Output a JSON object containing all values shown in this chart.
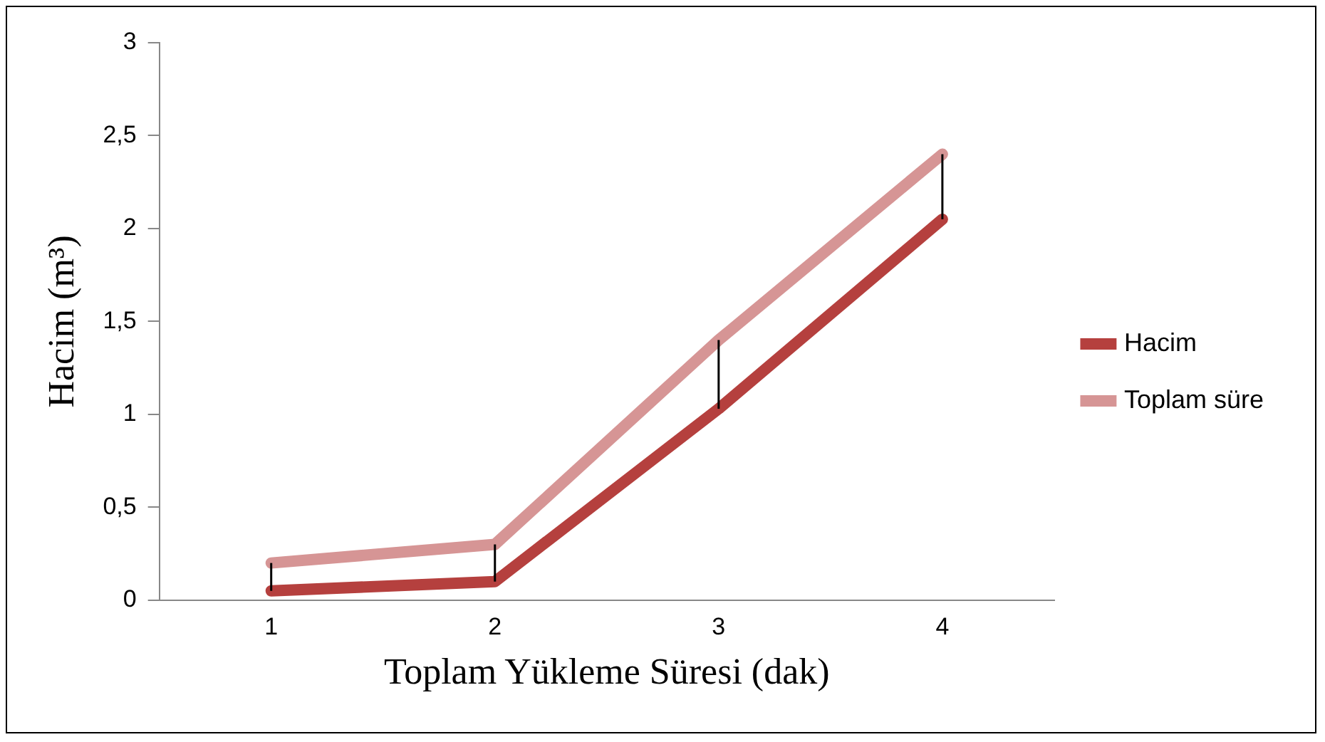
{
  "chart_data": {
    "type": "line",
    "xlabel": "Toplam Yükleme Süresi (dak)",
    "ylabel": "Hacim (m³)",
    "categories": [
      "1",
      "2",
      "3",
      "4"
    ],
    "series": [
      {
        "name": "Hacim",
        "color": "#b5403e",
        "values": [
          0.05,
          0.1,
          1.03,
          2.05
        ],
        "errors": [
          [
            0.05,
            0.2
          ],
          [
            0.1,
            0.3
          ],
          [
            1.03,
            1.4
          ],
          [
            2.05,
            2.4
          ]
        ]
      },
      {
        "name": "Toplam süre",
        "color": "#d69595",
        "values": [
          0.2,
          0.3,
          1.4,
          2.4
        ]
      }
    ],
    "ylim": [
      0,
      3
    ],
    "yticks": [
      {
        "value": 0,
        "label": "0"
      },
      {
        "value": 0.5,
        "label": "0,5"
      },
      {
        "value": 1,
        "label": "1"
      },
      {
        "value": 1.5,
        "label": "1,5"
      },
      {
        "value": 2,
        "label": "2"
      },
      {
        "value": 2.5,
        "label": "2,5"
      },
      {
        "value": 3,
        "label": "3"
      }
    ],
    "grid": false,
    "legend": "right",
    "marker": "none",
    "line_style": "solid"
  }
}
